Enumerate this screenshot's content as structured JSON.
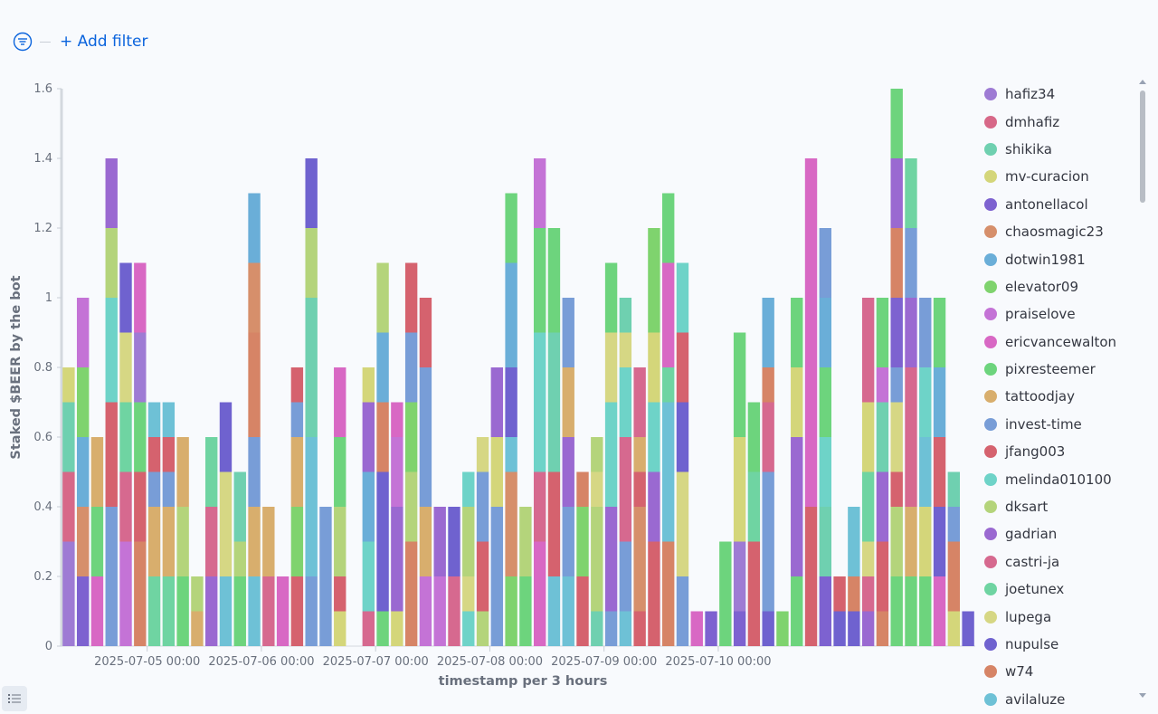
{
  "filter": {
    "add_label": "+ Add filter"
  },
  "colors": {
    "hafiz34": "#9e7bd4",
    "dmhafiz": "#d76888",
    "shikika": "#6fd0b0",
    "mv-curacion": "#d4d67a",
    "antonellacol": "#7d62d0",
    "chaosmagic23": "#d68f6b",
    "dotwin1981": "#6aaed8",
    "elevator09": "#7fd36e",
    "praiselove": "#c473d6",
    "ericvancewalton": "#d868c4",
    "pixresteemer": "#6dd47d",
    "tattoodjay": "#d8ae6d",
    "invest-time": "#789dd7",
    "jfang003": "#d5626e",
    "melinda010100": "#6ed3c8",
    "dksart": "#b4d47b",
    "gadrian": "#9a69d1",
    "castri-ja": "#d6698f",
    "joetunex": "#6fd4a2",
    "lupega": "#d6d784",
    "nupulse": "#6f62cf",
    "w74": "#d68466",
    "avilaluze": "#6ec1d6"
  },
  "legend": [
    "hafiz34",
    "dmhafiz",
    "shikika",
    "mv-curacion",
    "antonellacol",
    "chaosmagic23",
    "dotwin1981",
    "elevator09",
    "praiselove",
    "ericvancewalton",
    "pixresteemer",
    "tattoodjay",
    "invest-time",
    "jfang003",
    "melinda010100",
    "dksart",
    "gadrian",
    "castri-ja",
    "joetunex",
    "lupega",
    "nupulse",
    "w74",
    "avilaluze"
  ],
  "chart_data": {
    "type": "bar",
    "stacked": true,
    "xlabel": "timestamp per 3 hours",
    "ylabel": "Staked $BEER by the bot",
    "ylim": [
      0,
      1.6
    ],
    "yticks": [
      0,
      0.2,
      0.4,
      0.6,
      0.8,
      1,
      1.2,
      1.4,
      1.6
    ],
    "ytick_labels": [
      "0",
      "0.2",
      "0.4",
      "0.6",
      "0.8",
      "1",
      "1.2",
      "1.4",
      "1.6"
    ],
    "x_first_bucket": "2025-07-04 06:00",
    "bucket_hours": 3,
    "x_ticks": [
      "2025-07-05 00:00",
      "2025-07-06 00:00",
      "2025-07-07 00:00",
      "2025-07-08 00:00",
      "2025-07-09 00:00",
      "2025-07-10 00:00"
    ],
    "legend_position": "right",
    "bars": [
      [
        [
          "hafiz34",
          0.3
        ],
        [
          "dmhafiz",
          0.2
        ],
        [
          "shikika",
          0.2
        ],
        [
          "mv-curacion",
          0.1
        ]
      ],
      [
        [
          "antonellacol",
          0.2
        ],
        [
          "chaosmagic23",
          0.2
        ],
        [
          "dotwin1981",
          0.2
        ],
        [
          "elevator09",
          0.2
        ],
        [
          "praiselove",
          0.2
        ]
      ],
      [
        [
          "ericvancewalton",
          0.2
        ],
        [
          "pixresteemer",
          0.2
        ],
        [
          "tattoodjay",
          0.2
        ]
      ],
      [
        [
          "invest-time",
          0.4
        ],
        [
          "jfang003",
          0.3
        ],
        [
          "melinda010100",
          0.3
        ],
        [
          "dksart",
          0.2
        ],
        [
          "gadrian",
          0.2
        ]
      ],
      [
        [
          "praiselove",
          0.3
        ],
        [
          "castri-ja",
          0.2
        ],
        [
          "joetunex",
          0.2
        ],
        [
          "lupega",
          0.2
        ],
        [
          "nupulse",
          0.2
        ]
      ],
      [
        [
          "w74",
          0.3
        ],
        [
          "jfang003",
          0.2
        ],
        [
          "pixresteemer",
          0.2
        ],
        [
          "hafiz34",
          0.2
        ],
        [
          "ericvancewalton",
          0.2
        ]
      ],
      [
        [
          "joetunex",
          0.2
        ],
        [
          "tattoodjay",
          0.2
        ],
        [
          "invest-time",
          0.1
        ],
        [
          "jfang003",
          0.1
        ],
        [
          "avilaluze",
          0.1
        ]
      ],
      [
        [
          "joetunex",
          0.2
        ],
        [
          "tattoodjay",
          0.2
        ],
        [
          "invest-time",
          0.1
        ],
        [
          "jfang003",
          0.1
        ],
        [
          "avilaluze",
          0.1
        ]
      ],
      [
        [
          "pixresteemer",
          0.2
        ],
        [
          "dksart",
          0.2
        ],
        [
          "tattoodjay",
          0.2
        ]
      ],
      [
        [
          "tattoodjay",
          0.1
        ],
        [
          "dksart",
          0.1
        ]
      ],
      [
        [
          "gadrian",
          0.2
        ],
        [
          "castri-ja",
          0.2
        ],
        [
          "joetunex",
          0.2
        ]
      ],
      [
        [
          "avilaluze",
          0.2
        ],
        [
          "lupega",
          0.3
        ],
        [
          "nupulse",
          0.2
        ]
      ],
      [
        [
          "pixresteemer",
          0.2
        ],
        [
          "dksart",
          0.1
        ],
        [
          "shikika",
          0.2
        ]
      ],
      [
        [
          "avilaluze",
          0.2
        ],
        [
          "tattoodjay",
          0.2
        ],
        [
          "invest-time",
          0.2
        ],
        [
          "w74",
          0.3
        ],
        [
          "chaosmagic23",
          0.2
        ],
        [
          "dotwin1981",
          0.2
        ]
      ],
      [
        [
          "castri-ja",
          0.2
        ],
        [
          "tattoodjay",
          0.2
        ]
      ],
      [
        [
          "ericvancewalton",
          0.2
        ]
      ],
      [
        [
          "jfang003",
          0.2
        ],
        [
          "elevator09",
          0.2
        ],
        [
          "tattoodjay",
          0.2
        ],
        [
          "invest-time",
          0.1
        ],
        [
          "jfang003",
          0.1
        ]
      ],
      [
        [
          "invest-time",
          0.2
        ],
        [
          "avilaluze",
          0.4
        ],
        [
          "shikika",
          0.4
        ],
        [
          "dksart",
          0.2
        ],
        [
          "nupulse",
          0.2
        ]
      ],
      [
        [
          "invest-time",
          0.4
        ]
      ],
      [
        [
          "mv-curacion",
          0.1
        ],
        [
          "jfang003",
          0.1
        ],
        [
          "dksart",
          0.2
        ],
        [
          "pixresteemer",
          0.2
        ],
        [
          "ericvancewalton",
          0.2
        ]
      ],
      [],
      [
        [
          "castri-ja",
          0.1
        ],
        [
          "melinda010100",
          0.2
        ],
        [
          "dotwin1981",
          0.2
        ],
        [
          "gadrian",
          0.2
        ],
        [
          "mv-curacion",
          0.1
        ]
      ],
      [
        [
          "pixresteemer",
          0.1
        ],
        [
          "nupulse",
          0.4
        ],
        [
          "w74",
          0.2
        ],
        [
          "dotwin1981",
          0.2
        ],
        [
          "dksart",
          0.2
        ]
      ],
      [
        [
          "mv-curacion",
          0.1
        ],
        [
          "gadrian",
          0.3
        ],
        [
          "praiselove",
          0.2
        ],
        [
          "ericvancewalton",
          0.1
        ]
      ],
      [
        [
          "w74",
          0.3
        ],
        [
          "dksart",
          0.2
        ],
        [
          "elevator09",
          0.2
        ],
        [
          "invest-time",
          0.2
        ],
        [
          "jfang003",
          0.2
        ]
      ],
      [
        [
          "praiselove",
          0.2
        ],
        [
          "tattoodjay",
          0.2
        ],
        [
          "invest-time",
          0.4
        ],
        [
          "jfang003",
          0.2
        ]
      ],
      [
        [
          "praiselove",
          0.2
        ],
        [
          "gadrian",
          0.2
        ]
      ],
      [
        [
          "castri-ja",
          0.2
        ],
        [
          "nupulse",
          0.2
        ]
      ],
      [
        [
          "melinda010100",
          0.1
        ],
        [
          "lupega",
          0.1
        ],
        [
          "dksart",
          0.2
        ],
        [
          "melinda010100",
          0.1
        ]
      ],
      [
        [
          "dksart",
          0.1
        ],
        [
          "jfang003",
          0.2
        ],
        [
          "invest-time",
          0.2
        ],
        [
          "lupega",
          0.1
        ]
      ],
      [
        [
          "invest-time",
          0.4
        ],
        [
          "mv-curacion",
          0.2
        ],
        [
          "gadrian",
          0.2
        ]
      ],
      [
        [
          "elevator09",
          0.2
        ],
        [
          "chaosmagic23",
          0.3
        ],
        [
          "avilaluze",
          0.1
        ],
        [
          "nupulse",
          0.2
        ],
        [
          "dotwin1981",
          0.3
        ],
        [
          "pixresteemer",
          0.2
        ]
      ],
      [
        [
          "pixresteemer",
          0.2
        ],
        [
          "dksart",
          0.2
        ]
      ],
      [
        [
          "ericvancewalton",
          0.3
        ],
        [
          "castri-ja",
          0.2
        ],
        [
          "melinda010100",
          0.4
        ],
        [
          "pixresteemer",
          0.3
        ],
        [
          "praiselove",
          0.2
        ]
      ],
      [
        [
          "avilaluze",
          0.2
        ],
        [
          "jfang003",
          0.3
        ],
        [
          "shikika",
          0.4
        ],
        [
          "pixresteemer",
          0.3
        ]
      ],
      [
        [
          "avilaluze",
          0.2
        ],
        [
          "invest-time",
          0.2
        ],
        [
          "gadrian",
          0.2
        ],
        [
          "tattoodjay",
          0.2
        ],
        [
          "invest-time",
          0.2
        ]
      ],
      [
        [
          "jfang003",
          0.2
        ],
        [
          "elevator09",
          0.2
        ],
        [
          "w74",
          0.1
        ]
      ],
      [
        [
          "shikika",
          0.1
        ],
        [
          "dksart",
          0.3
        ],
        [
          "lupega",
          0.1
        ],
        [
          "dksart",
          0.1
        ]
      ],
      [
        [
          "invest-time",
          0.1
        ],
        [
          "gadrian",
          0.3
        ],
        [
          "melinda010100",
          0.3
        ],
        [
          "lupega",
          0.2
        ],
        [
          "pixresteemer",
          0.2
        ]
      ],
      [
        [
          "avilaluze",
          0.1
        ],
        [
          "invest-time",
          0.2
        ],
        [
          "castri-ja",
          0.3
        ],
        [
          "melinda010100",
          0.2
        ],
        [
          "lupega",
          0.1
        ],
        [
          "shikika",
          0.1
        ]
      ],
      [
        [
          "jfang003",
          0.1
        ],
        [
          "chaosmagic23",
          0.3
        ],
        [
          "jfang003",
          0.1
        ],
        [
          "tattoodjay",
          0.1
        ],
        [
          "castri-ja",
          0.2
        ]
      ],
      [
        [
          "jfang003",
          0.3
        ],
        [
          "gadrian",
          0.2
        ],
        [
          "melinda010100",
          0.2
        ],
        [
          "mv-curacion",
          0.2
        ],
        [
          "elevator09",
          0.3
        ]
      ],
      [
        [
          "w74",
          0.3
        ],
        [
          "avilaluze",
          0.4
        ],
        [
          "joetunex",
          0.1
        ],
        [
          "ericvancewalton",
          0.3
        ],
        [
          "pixresteemer",
          0.2
        ]
      ],
      [
        [
          "invest-time",
          0.2
        ],
        [
          "lupega",
          0.3
        ],
        [
          "nupulse",
          0.2
        ],
        [
          "jfang003",
          0.2
        ],
        [
          "melinda010100",
          0.2
        ]
      ],
      [
        [
          "ericvancewalton",
          0.1
        ]
      ],
      [
        [
          "antonellacol",
          0.1
        ]
      ],
      [
        [
          "pixresteemer",
          0.3
        ]
      ],
      [
        [
          "antonellacol",
          0.1
        ],
        [
          "hafiz34",
          0.2
        ],
        [
          "mv-curacion",
          0.3
        ],
        [
          "pixresteemer",
          0.3
        ]
      ],
      [
        [
          "jfang003",
          0.3
        ],
        [
          "joetunex",
          0.2
        ],
        [
          "pixresteemer",
          0.2
        ]
      ],
      [
        [
          "nupulse",
          0.1
        ],
        [
          "invest-time",
          0.4
        ],
        [
          "castri-ja",
          0.2
        ],
        [
          "w74",
          0.1
        ],
        [
          "dotwin1981",
          0.2
        ]
      ],
      [
        [
          "elevator09",
          0.1
        ]
      ],
      [
        [
          "pixresteemer",
          0.2
        ],
        [
          "gadrian",
          0.4
        ],
        [
          "mv-curacion",
          0.2
        ],
        [
          "pixresteemer",
          0.2
        ]
      ],
      [
        [
          "jfang003",
          0.4
        ],
        [
          "ericvancewalton",
          0.2
        ],
        [
          "ericvancewalton",
          0.8
        ]
      ],
      [
        [
          "antonellacol",
          0.2
        ],
        [
          "shikika",
          0.2
        ],
        [
          "melinda010100",
          0.2
        ],
        [
          "pixresteemer",
          0.2
        ],
        [
          "dotwin1981",
          0.2
        ],
        [
          "invest-time",
          0.2
        ]
      ],
      [
        [
          "nupulse",
          0.1
        ],
        [
          "jfang003",
          0.1
        ]
      ],
      [
        [
          "nupulse",
          0.1
        ],
        [
          "w74",
          0.1
        ],
        [
          "avilaluze",
          0.2
        ]
      ],
      [
        [
          "gadrian",
          0.1
        ],
        [
          "castri-ja",
          0.1
        ],
        [
          "lupega",
          0.1
        ],
        [
          "joetunex",
          0.2
        ],
        [
          "mv-curacion",
          0.2
        ],
        [
          "castri-ja",
          0.3
        ]
      ],
      [
        [
          "w74",
          0.1
        ],
        [
          "jfang003",
          0.2
        ],
        [
          "gadrian",
          0.2
        ],
        [
          "shikika",
          0.2
        ],
        [
          "praiselove",
          0.1
        ],
        [
          "pixresteemer",
          0.2
        ]
      ],
      [
        [
          "pixresteemer",
          0.2
        ],
        [
          "dksart",
          0.2
        ],
        [
          "jfang003",
          0.1
        ],
        [
          "lupega",
          0.2
        ],
        [
          "invest-time",
          0.1
        ],
        [
          "antonellacol",
          0.2
        ],
        [
          "w74",
          0.2
        ],
        [
          "gadrian",
          0.2
        ],
        [
          "pixresteemer",
          0.2
        ]
      ],
      [
        [
          "pixresteemer",
          0.2
        ],
        [
          "tattoodjay",
          0.2
        ],
        [
          "castri-ja",
          0.4
        ],
        [
          "gadrian",
          0.2
        ],
        [
          "invest-time",
          0.2
        ],
        [
          "joetunex",
          0.2
        ]
      ],
      [
        [
          "pixresteemer",
          0.2
        ],
        [
          "mv-curacion",
          0.2
        ],
        [
          "avilaluze",
          0.2
        ],
        [
          "melinda010100",
          0.2
        ],
        [
          "invest-time",
          0.2
        ]
      ],
      [
        [
          "ericvancewalton",
          0.2
        ],
        [
          "nupulse",
          0.2
        ],
        [
          "jfang003",
          0.2
        ],
        [
          "dotwin1981",
          0.2
        ],
        [
          "pixresteemer",
          0.2
        ]
      ],
      [
        [
          "mv-curacion",
          0.1
        ],
        [
          "w74",
          0.2
        ],
        [
          "invest-time",
          0.1
        ],
        [
          "shikika",
          0.1
        ]
      ],
      [
        [
          "nupulse",
          0.1
        ]
      ]
    ]
  }
}
